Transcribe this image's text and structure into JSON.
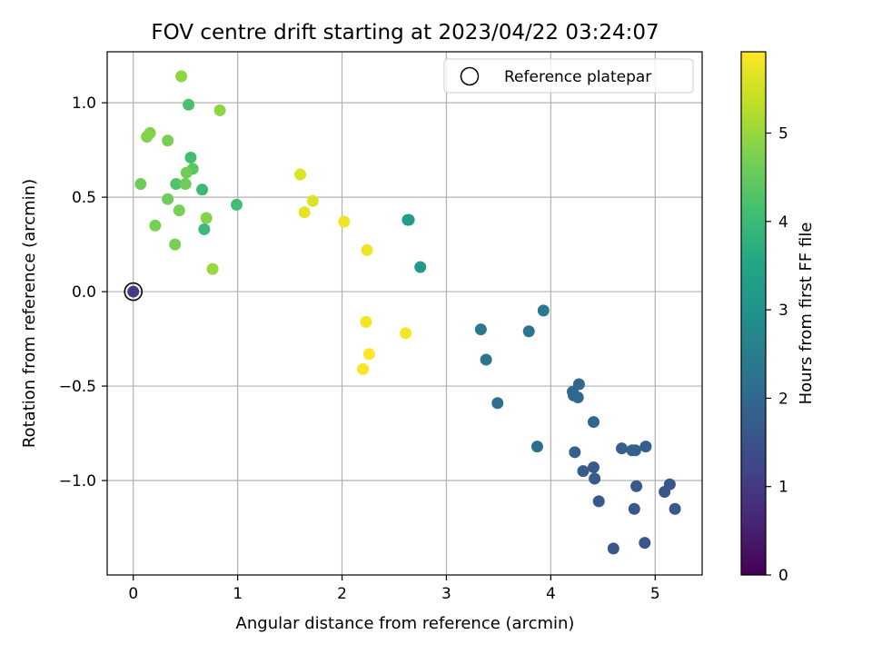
{
  "chart_data": {
    "type": "scatter",
    "title": "FOV centre drift starting at 2023/04/22 03:24:07",
    "xlabel": "Angular distance from reference (arcmin)",
    "ylabel": "Rotation from reference (arcmin)",
    "xlim": [
      -0.25,
      5.45
    ],
    "ylim": [
      -1.5,
      1.27
    ],
    "grid": true,
    "x_ticks": [
      0,
      1,
      2,
      3,
      4,
      5
    ],
    "x_tick_labels": [
      "0",
      "1",
      "2",
      "3",
      "4",
      "5"
    ],
    "y_ticks": [
      -1.0,
      -0.5,
      0.0,
      0.5,
      1.0
    ],
    "y_tick_labels": [
      "−1.0",
      "−0.5",
      "0.0",
      "0.5",
      "1.0"
    ],
    "colorbar": {
      "label": "Hours from first FF file",
      "colormap": "viridis",
      "range": [
        0,
        5.92
      ],
      "ticks": [
        0,
        1,
        2,
        3,
        4,
        5
      ],
      "tick_labels": [
        "0",
        "1",
        "2",
        "3",
        "4",
        "5"
      ]
    },
    "reference": {
      "name": "Reference platepar",
      "x": 0,
      "y": 0
    },
    "legend": {
      "position": "top-right",
      "entries": [
        "Reference platepar"
      ]
    },
    "points": [
      {
        "x": 0.0,
        "y": 0.0,
        "c": 1.0
      },
      {
        "x": 4.6,
        "y": -1.36,
        "c": 1.6
      },
      {
        "x": 4.9,
        "y": -1.33,
        "c": 1.6
      },
      {
        "x": 5.19,
        "y": -1.15,
        "c": 1.6
      },
      {
        "x": 4.8,
        "y": -1.15,
        "c": 1.6
      },
      {
        "x": 5.09,
        "y": -1.06,
        "c": 1.6
      },
      {
        "x": 5.14,
        "y": -1.02,
        "c": 1.6
      },
      {
        "x": 4.82,
        "y": -1.03,
        "c": 1.6
      },
      {
        "x": 4.46,
        "y": -1.11,
        "c": 1.6
      },
      {
        "x": 4.42,
        "y": -0.99,
        "c": 1.7
      },
      {
        "x": 4.41,
        "y": -0.93,
        "c": 1.7
      },
      {
        "x": 4.31,
        "y": -0.95,
        "c": 1.7
      },
      {
        "x": 4.91,
        "y": -0.82,
        "c": 1.8
      },
      {
        "x": 4.81,
        "y": -0.84,
        "c": 1.8
      },
      {
        "x": 4.78,
        "y": -0.84,
        "c": 1.8
      },
      {
        "x": 4.68,
        "y": -0.83,
        "c": 1.8
      },
      {
        "x": 4.23,
        "y": -0.85,
        "c": 1.8
      },
      {
        "x": 4.41,
        "y": -0.69,
        "c": 1.9
      },
      {
        "x": 4.26,
        "y": -0.56,
        "c": 2.0
      },
      {
        "x": 4.22,
        "y": -0.55,
        "c": 2.0
      },
      {
        "x": 4.21,
        "y": -0.53,
        "c": 2.0
      },
      {
        "x": 4.27,
        "y": -0.49,
        "c": 2.0
      },
      {
        "x": 3.87,
        "y": -0.82,
        "c": 2.1
      },
      {
        "x": 3.49,
        "y": -0.59,
        "c": 2.2
      },
      {
        "x": 3.38,
        "y": -0.36,
        "c": 2.3
      },
      {
        "x": 3.79,
        "y": -0.21,
        "c": 2.3
      },
      {
        "x": 3.33,
        "y": -0.2,
        "c": 2.4
      },
      {
        "x": 3.93,
        "y": -0.1,
        "c": 2.4
      },
      {
        "x": 2.75,
        "y": 0.13,
        "c": 3.2
      },
      {
        "x": 2.63,
        "y": 0.38,
        "c": 3.3
      },
      {
        "x": 2.64,
        "y": 0.38,
        "c": 3.3
      },
      {
        "x": 0.99,
        "y": 0.46,
        "c": 4.1
      },
      {
        "x": 0.68,
        "y": 0.33,
        "c": 4.0
      },
      {
        "x": 0.66,
        "y": 0.54,
        "c": 4.0
      },
      {
        "x": 0.55,
        "y": 0.71,
        "c": 4.1
      },
      {
        "x": 0.53,
        "y": 0.99,
        "c": 4.2
      },
      {
        "x": 0.41,
        "y": 0.57,
        "c": 4.3
      },
      {
        "x": 0.57,
        "y": 0.65,
        "c": 4.4
      },
      {
        "x": 0.5,
        "y": 0.57,
        "c": 4.6
      },
      {
        "x": 0.51,
        "y": 0.63,
        "c": 4.6
      },
      {
        "x": 0.07,
        "y": 0.57,
        "c": 4.6
      },
      {
        "x": 0.33,
        "y": 0.49,
        "c": 4.6
      },
      {
        "x": 0.44,
        "y": 0.43,
        "c": 4.7
      },
      {
        "x": 0.7,
        "y": 0.39,
        "c": 4.8
      },
      {
        "x": 0.21,
        "y": 0.35,
        "c": 4.7
      },
      {
        "x": 0.4,
        "y": 0.25,
        "c": 4.7
      },
      {
        "x": 0.76,
        "y": 0.12,
        "c": 5.0
      },
      {
        "x": 0.33,
        "y": 0.8,
        "c": 4.7
      },
      {
        "x": 0.13,
        "y": 0.82,
        "c": 4.8
      },
      {
        "x": 0.16,
        "y": 0.84,
        "c": 4.8
      },
      {
        "x": 0.83,
        "y": 0.96,
        "c": 4.9
      },
      {
        "x": 0.46,
        "y": 1.14,
        "c": 4.9
      },
      {
        "x": 1.6,
        "y": 0.62,
        "c": 5.6
      },
      {
        "x": 1.72,
        "y": 0.48,
        "c": 5.6
      },
      {
        "x": 1.64,
        "y": 0.42,
        "c": 5.7
      },
      {
        "x": 2.02,
        "y": 0.37,
        "c": 5.8
      },
      {
        "x": 2.24,
        "y": 0.22,
        "c": 5.8
      },
      {
        "x": 2.23,
        "y": -0.16,
        "c": 5.85
      },
      {
        "x": 2.61,
        "y": -0.22,
        "c": 5.85
      },
      {
        "x": 2.26,
        "y": -0.33,
        "c": 5.9
      },
      {
        "x": 2.2,
        "y": -0.41,
        "c": 5.9
      }
    ]
  }
}
